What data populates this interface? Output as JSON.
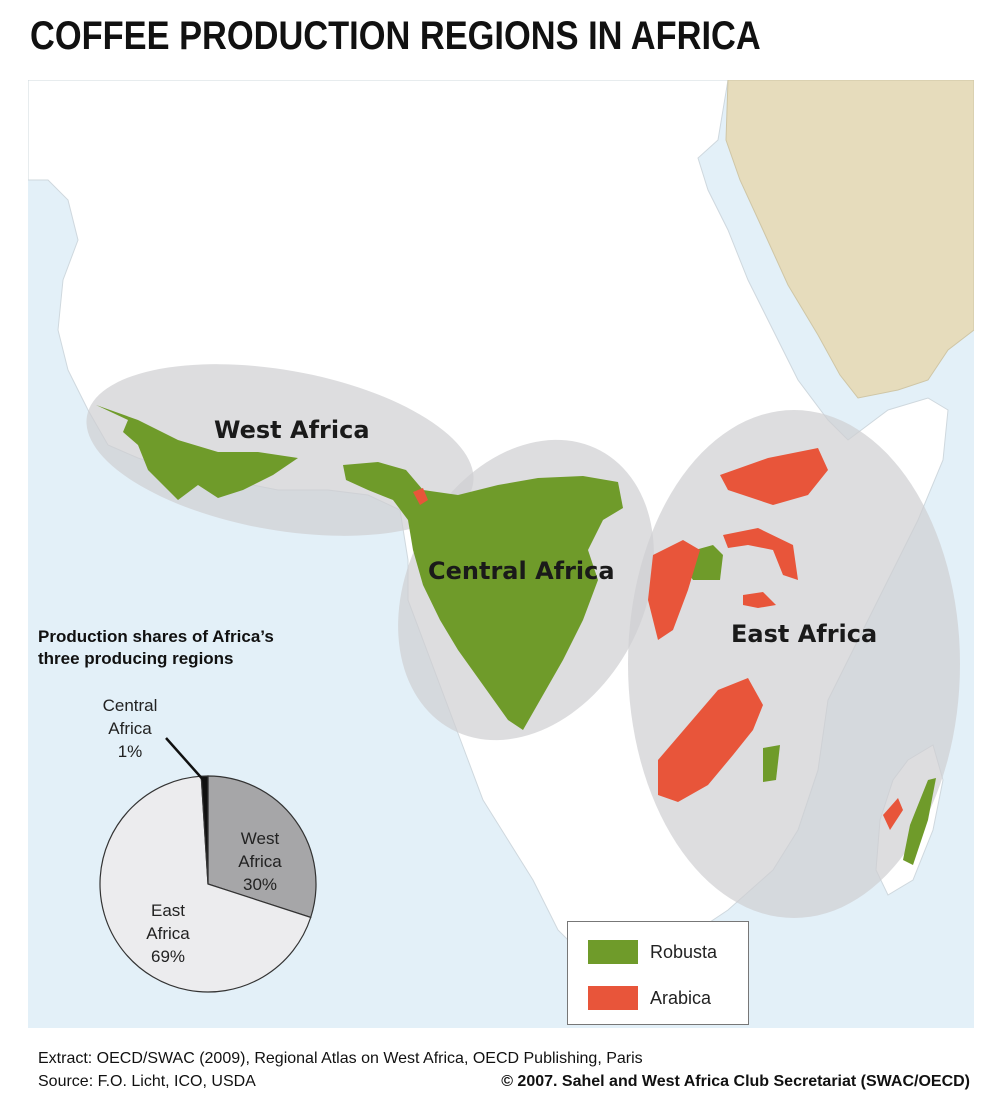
{
  "title": "COFFEE PRODUCTION REGIONS IN AFRICA",
  "regions": {
    "west": "West Africa",
    "central": "Central Africa",
    "east": "East Africa"
  },
  "pie": {
    "title_line1": "Production shares of Africa’s",
    "title_line2": "three producing regions",
    "slices": [
      {
        "name_line1": "West",
        "name_line2": "Africa",
        "share_label": "30%",
        "value": 30,
        "color": "#a6a6a8"
      },
      {
        "name_line1": "East",
        "name_line2": "Africa",
        "share_label": "69%",
        "value": 69,
        "color": "#ececee"
      },
      {
        "name_line1": "Central",
        "name_line2": "Africa",
        "share_label": "1%",
        "value": 1,
        "color": "#111111"
      }
    ]
  },
  "legend": {
    "items": [
      {
        "label": "Robusta",
        "color": "#6f9b2a"
      },
      {
        "label": "Arabica",
        "color": "#e8553a"
      }
    ]
  },
  "colors": {
    "ocean": "#e3f0f8",
    "land": "#ffffff",
    "arabian_peninsula": "#e6dcbc",
    "region_ellipse": "#d9d9db",
    "robusta": "#6f9b2a",
    "arabica": "#e8553a"
  },
  "footer": {
    "extract": "Extract: OECD/SWAC (2009), Regional Atlas on West Africa, OECD Publishing, Paris",
    "source": "Source: F.O. Licht, ICO, USDA",
    "copyright": "© 2007. Sahel and West Africa Club Secretariat (SWAC/OECD)"
  }
}
